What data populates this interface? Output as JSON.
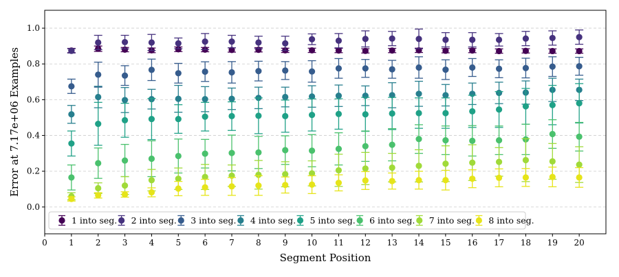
{
  "chart_data": {
    "type": "scatter",
    "xlabel": "Segment Position",
    "ylabel": "Error at 7.17e+06 Examples",
    "xlim": [
      0,
      21
    ],
    "ylim": [
      -0.15,
      1.1
    ],
    "x_ticks": [
      "0",
      "1",
      "2",
      "3",
      "4",
      "5",
      "6",
      "7",
      "8",
      "9",
      "10",
      "11",
      "12",
      "13",
      "14",
      "15",
      "16",
      "17",
      "18",
      "19",
      "20"
    ],
    "y_ticks": [
      "0.0",
      "0.2",
      "0.4",
      "0.6",
      "0.8",
      "1.0"
    ],
    "grid": "horizontal dashed",
    "legend_placement": "lower-left",
    "error_bars": true,
    "series": [
      {
        "name": "1 into seg.",
        "color": "#440154",
        "x": [
          1,
          2,
          3,
          4,
          5,
          6,
          7,
          8,
          9,
          10,
          11,
          12,
          13,
          14,
          15,
          16,
          17,
          18,
          19,
          20
        ],
        "values": [
          0.875,
          0.885,
          0.88,
          0.876,
          0.882,
          0.88,
          0.878,
          0.879,
          0.876,
          0.876,
          0.875,
          0.873,
          0.875,
          0.876,
          0.874,
          0.875,
          0.872,
          0.873,
          0.872,
          0.872
        ],
        "err": [
          0.012,
          0.015,
          0.012,
          0.013,
          0.013,
          0.012,
          0.012,
          0.012,
          0.012,
          0.012,
          0.012,
          0.012,
          0.012,
          0.012,
          0.012,
          0.012,
          0.012,
          0.012,
          0.012,
          0.012
        ]
      },
      {
        "name": "2 into seg.",
        "color": "#46327e",
        "x": [
          1,
          2,
          3,
          4,
          5,
          6,
          7,
          8,
          9,
          10,
          11,
          12,
          13,
          14,
          15,
          16,
          17,
          18,
          19,
          20
        ],
        "values": [
          0.873,
          0.92,
          0.922,
          0.92,
          0.915,
          0.925,
          0.925,
          0.92,
          0.915,
          0.938,
          0.93,
          0.94,
          0.942,
          0.94,
          0.935,
          0.935,
          0.935,
          0.942,
          0.945,
          0.95
        ],
        "err": [
          0.012,
          0.04,
          0.038,
          0.045,
          0.03,
          0.045,
          0.035,
          0.035,
          0.04,
          0.03,
          0.04,
          0.045,
          0.04,
          0.055,
          0.04,
          0.04,
          0.035,
          0.04,
          0.04,
          0.04
        ]
      },
      {
        "name": "3 into seg.",
        "color": "#365c8d",
        "x": [
          1,
          2,
          3,
          4,
          5,
          6,
          7,
          8,
          9,
          10,
          11,
          12,
          13,
          14,
          15,
          16,
          17,
          18,
          19,
          20
        ],
        "values": [
          0.675,
          0.74,
          0.735,
          0.767,
          0.748,
          0.757,
          0.753,
          0.76,
          0.763,
          0.758,
          0.775,
          0.775,
          0.77,
          0.78,
          0.768,
          0.78,
          0.773,
          0.777,
          0.785,
          0.787
        ],
        "err": [
          0.04,
          0.07,
          0.055,
          0.06,
          0.055,
          0.055,
          0.06,
          0.055,
          0.05,
          0.06,
          0.055,
          0.05,
          0.05,
          0.06,
          0.055,
          0.05,
          0.05,
          0.055,
          0.055,
          0.05
        ]
      },
      {
        "name": "4 into seg.",
        "color": "#277f8e",
        "x": [
          1,
          2,
          3,
          4,
          5,
          6,
          7,
          8,
          9,
          10,
          11,
          12,
          13,
          14,
          15,
          16,
          17,
          18,
          19,
          20
        ],
        "values": [
          0.518,
          0.615,
          0.598,
          0.603,
          0.605,
          0.603,
          0.605,
          0.61,
          0.615,
          0.618,
          0.622,
          0.622,
          0.625,
          0.633,
          0.625,
          0.633,
          0.638,
          0.64,
          0.655,
          0.655
        ],
        "err": [
          0.05,
          0.06,
          0.07,
          0.055,
          0.075,
          0.07,
          0.06,
          0.06,
          0.055,
          0.06,
          0.06,
          0.055,
          0.07,
          0.07,
          0.06,
          0.06,
          0.06,
          0.065,
          0.065,
          0.06
        ]
      },
      {
        "name": "5 into seg.",
        "color": "#1fa187",
        "x": [
          1,
          2,
          3,
          4,
          5,
          6,
          7,
          8,
          9,
          10,
          11,
          12,
          13,
          14,
          15,
          16,
          17,
          18,
          19,
          20
        ],
        "values": [
          0.355,
          0.465,
          0.485,
          0.492,
          0.492,
          0.505,
          0.508,
          0.51,
          0.508,
          0.515,
          0.52,
          0.518,
          0.523,
          0.525,
          0.525,
          0.535,
          0.545,
          0.563,
          0.57,
          0.58
        ],
        "err": [
          0.07,
          0.12,
          0.095,
          0.115,
          0.08,
          0.08,
          0.08,
          0.1,
          0.09,
          0.09,
          0.085,
          0.095,
          0.09,
          0.085,
          0.085,
          0.09,
          0.1,
          0.1,
          0.11,
          0.11
        ]
      },
      {
        "name": "6 into seg.",
        "color": "#4ac16d",
        "x": [
          1,
          2,
          3,
          4,
          5,
          6,
          7,
          8,
          9,
          10,
          11,
          12,
          13,
          14,
          15,
          16,
          17,
          18,
          19,
          20
        ],
        "values": [
          0.165,
          0.245,
          0.26,
          0.27,
          0.285,
          0.298,
          0.302,
          0.305,
          0.318,
          0.315,
          0.325,
          0.34,
          0.348,
          0.38,
          0.373,
          0.37,
          0.373,
          0.378,
          0.408,
          0.393
        ],
        "err": [
          0.07,
          0.085,
          0.09,
          0.1,
          0.095,
          0.08,
          0.1,
          0.09,
          0.08,
          0.09,
          0.09,
          0.085,
          0.09,
          0.08,
          0.08,
          0.085,
          0.08,
          0.085,
          0.08,
          0.08
        ]
      },
      {
        "name": "7 into seg.",
        "color": "#a0da39",
        "x": [
          1,
          2,
          3,
          4,
          5,
          6,
          7,
          8,
          9,
          10,
          11,
          12,
          13,
          14,
          15,
          16,
          17,
          18,
          19,
          20
        ],
        "values": [
          0.06,
          0.105,
          0.12,
          0.15,
          0.158,
          0.168,
          0.175,
          0.18,
          0.183,
          0.188,
          0.205,
          0.215,
          0.22,
          0.23,
          0.242,
          0.248,
          0.252,
          0.262,
          0.255,
          0.237
        ],
        "err": [
          0.02,
          0.03,
          0.05,
          0.06,
          0.06,
          0.07,
          0.06,
          0.08,
          0.07,
          0.07,
          0.09,
          0.09,
          0.08,
          0.09,
          0.1,
          0.1,
          0.08,
          0.12,
          0.1,
          0.1
        ]
      },
      {
        "name": "8 into seg.",
        "color": "#e6e419",
        "x": [
          1,
          2,
          3,
          4,
          5,
          6,
          7,
          8,
          9,
          10,
          11,
          12,
          13,
          14,
          15,
          16,
          17,
          18,
          19,
          20
        ],
        "values": [
          0.045,
          0.065,
          0.07,
          0.082,
          0.103,
          0.11,
          0.115,
          0.12,
          0.123,
          0.125,
          0.135,
          0.148,
          0.145,
          0.15,
          0.15,
          0.158,
          0.163,
          0.165,
          0.168,
          0.165
        ],
        "err": [
          0.012,
          0.015,
          0.015,
          0.025,
          0.04,
          0.045,
          0.05,
          0.055,
          0.045,
          0.05,
          0.045,
          0.05,
          0.045,
          0.05,
          0.055,
          0.05,
          0.05,
          0.05,
          0.055,
          0.055
        ]
      }
    ]
  }
}
